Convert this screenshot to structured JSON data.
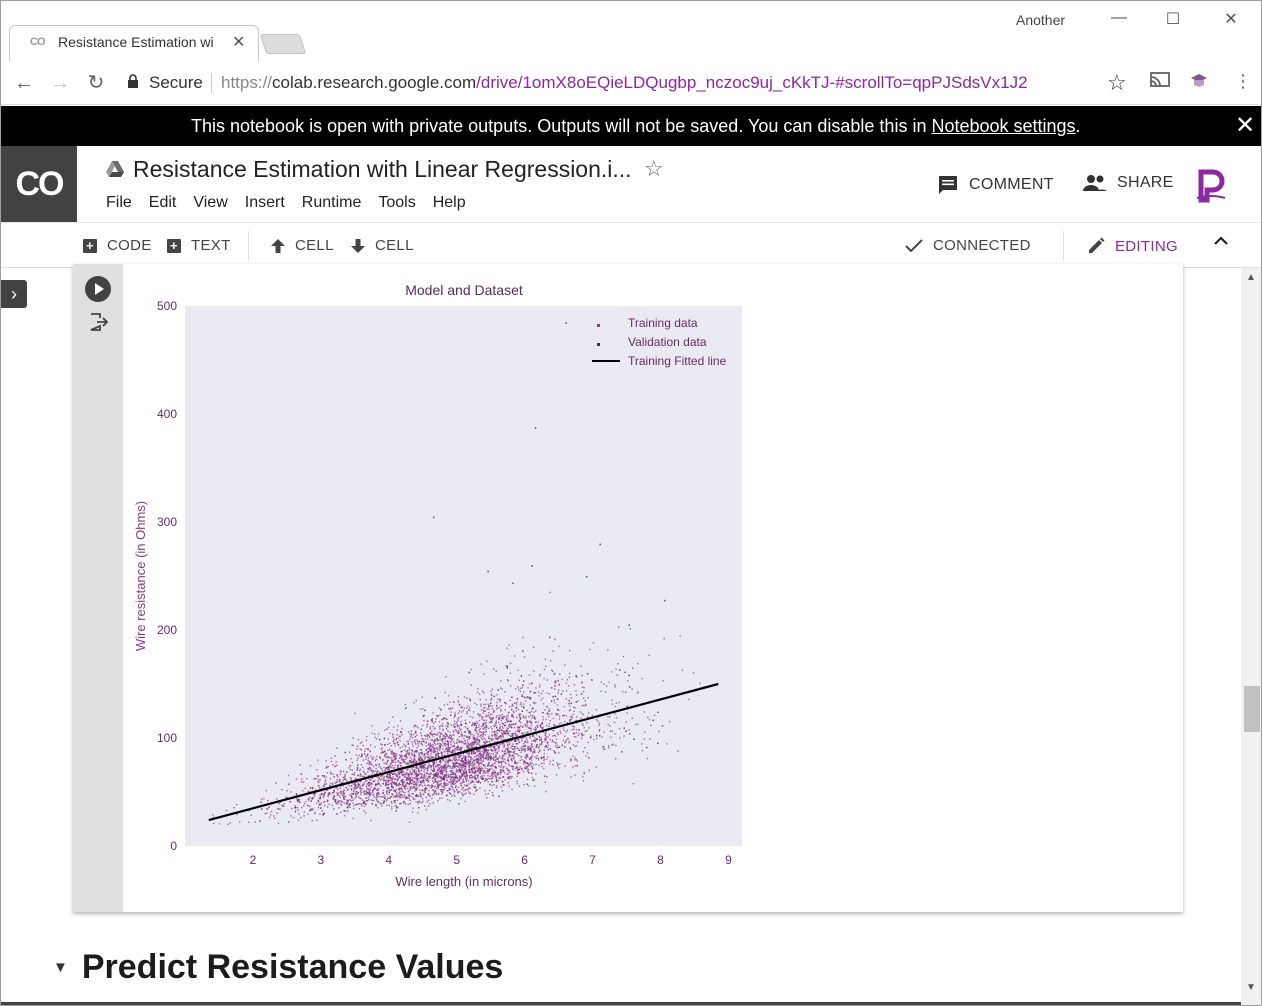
{
  "browser": {
    "tab_title": "Resistance Estimation wi",
    "tab_favicon": "CO",
    "profile_name": "Another",
    "secure_label": "Secure",
    "url_scheme": "https://",
    "url_host": "colab.research.google.com",
    "url_path": "/drive/1omX8oEQieLDQugbp_nczoc9uj_cKkTJ-#scrollTo=qpPJSdsVx1J2"
  },
  "infobar": {
    "text": "This notebook is open with private outputs. Outputs will not be saved. You can disable this in ",
    "link": "Notebook settings",
    "suffix": "."
  },
  "colab": {
    "logo": "CO",
    "notebook_title": "Resistance Estimation with Linear Regression.i...",
    "menu": [
      "File",
      "Edit",
      "View",
      "Insert",
      "Runtime",
      "Tools",
      "Help"
    ],
    "comment_label": "COMMENT",
    "share_label": "SHARE"
  },
  "cell_toolbar": {
    "code_label": "CODE",
    "text_label": "TEXT",
    "cell_up_label": "CELL",
    "cell_down_label": "CELL",
    "connected_label": "CONNECTED",
    "editing_label": "EDITING"
  },
  "section": {
    "title": "Predict Resistance Values"
  },
  "colors": {
    "accent_purple": "#8c28a0",
    "point_color": "#8e3b8e",
    "plot_bg": "#eaeaf2"
  },
  "chart_data": {
    "type": "scatter",
    "title": "Model and Dataset",
    "xlabel": "Wire length (in microns)",
    "ylabel": "Wire resistance (in Ohms)",
    "xlim": [
      1.0,
      9.2
    ],
    "ylim": [
      0,
      500
    ],
    "xticks": [
      2,
      3,
      4,
      5,
      6,
      7,
      8,
      9
    ],
    "yticks": [
      0,
      100,
      200,
      300,
      400,
      500
    ],
    "grid": false,
    "legend_position": "top-right",
    "series": [
      {
        "name": "Training data",
        "marker": "point",
        "color": "#8e3b8e",
        "approx_points": 9000,
        "x_range": [
          1.3,
          8.8
        ],
        "y_range": [
          20,
          300
        ]
      },
      {
        "name": "Validation data",
        "marker": "point",
        "color": "#7a2f7a",
        "approx_points": 1000,
        "x_range": [
          1.3,
          8.8
        ],
        "y_range": [
          20,
          300
        ]
      },
      {
        "name": "Training Fitted line",
        "type": "line",
        "color": "#000000",
        "x": [
          1.35,
          8.85
        ],
        "y": [
          24,
          150
        ]
      }
    ],
    "outliers": [
      [
        6.6,
        485
      ],
      [
        6.15,
        388
      ],
      [
        4.65,
        305
      ],
      [
        6.1,
        260
      ],
      [
        7.1,
        280
      ],
      [
        5.45,
        255
      ],
      [
        8.05,
        228
      ],
      [
        6.9,
        250
      ]
    ]
  }
}
